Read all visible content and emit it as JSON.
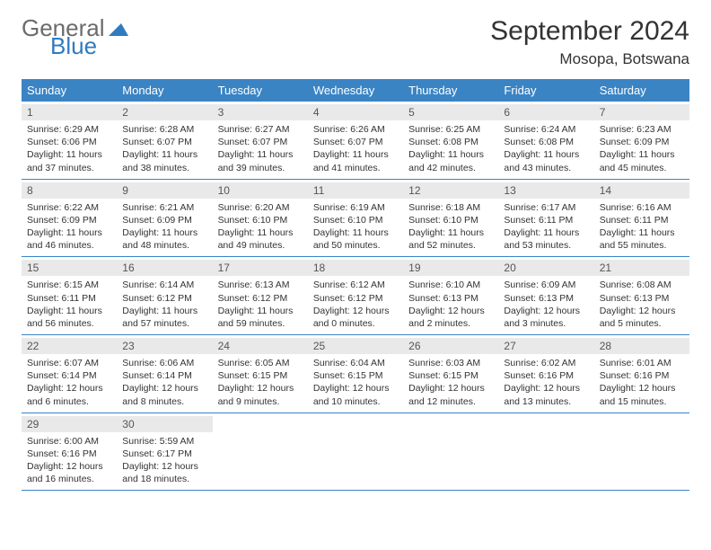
{
  "logo": {
    "word1": "General",
    "word2": "Blue",
    "word1_color": "#6b6b6b",
    "word2_color": "#2f7bbf",
    "triangle_color": "#2f7bbf"
  },
  "title": "September 2024",
  "location": "Mosopa, Botswana",
  "colors": {
    "header_bg": "#3a84c4",
    "header_text": "#ffffff",
    "daynum_bg": "#e9e9e9",
    "row_border": "#3a84c4",
    "body_text": "#333333"
  },
  "fonts": {
    "title_size": 30,
    "location_size": 17,
    "dayhead_size": 13,
    "cell_size": 10.5
  },
  "day_headers": [
    "Sunday",
    "Monday",
    "Tuesday",
    "Wednesday",
    "Thursday",
    "Friday",
    "Saturday"
  ],
  "weeks": [
    [
      {
        "num": "1",
        "sunrise": "Sunrise: 6:29 AM",
        "sunset": "Sunset: 6:06 PM",
        "daylight1": "Daylight: 11 hours",
        "daylight2": "and 37 minutes."
      },
      {
        "num": "2",
        "sunrise": "Sunrise: 6:28 AM",
        "sunset": "Sunset: 6:07 PM",
        "daylight1": "Daylight: 11 hours",
        "daylight2": "and 38 minutes."
      },
      {
        "num": "3",
        "sunrise": "Sunrise: 6:27 AM",
        "sunset": "Sunset: 6:07 PM",
        "daylight1": "Daylight: 11 hours",
        "daylight2": "and 39 minutes."
      },
      {
        "num": "4",
        "sunrise": "Sunrise: 6:26 AM",
        "sunset": "Sunset: 6:07 PM",
        "daylight1": "Daylight: 11 hours",
        "daylight2": "and 41 minutes."
      },
      {
        "num": "5",
        "sunrise": "Sunrise: 6:25 AM",
        "sunset": "Sunset: 6:08 PM",
        "daylight1": "Daylight: 11 hours",
        "daylight2": "and 42 minutes."
      },
      {
        "num": "6",
        "sunrise": "Sunrise: 6:24 AM",
        "sunset": "Sunset: 6:08 PM",
        "daylight1": "Daylight: 11 hours",
        "daylight2": "and 43 minutes."
      },
      {
        "num": "7",
        "sunrise": "Sunrise: 6:23 AM",
        "sunset": "Sunset: 6:09 PM",
        "daylight1": "Daylight: 11 hours",
        "daylight2": "and 45 minutes."
      }
    ],
    [
      {
        "num": "8",
        "sunrise": "Sunrise: 6:22 AM",
        "sunset": "Sunset: 6:09 PM",
        "daylight1": "Daylight: 11 hours",
        "daylight2": "and 46 minutes."
      },
      {
        "num": "9",
        "sunrise": "Sunrise: 6:21 AM",
        "sunset": "Sunset: 6:09 PM",
        "daylight1": "Daylight: 11 hours",
        "daylight2": "and 48 minutes."
      },
      {
        "num": "10",
        "sunrise": "Sunrise: 6:20 AM",
        "sunset": "Sunset: 6:10 PM",
        "daylight1": "Daylight: 11 hours",
        "daylight2": "and 49 minutes."
      },
      {
        "num": "11",
        "sunrise": "Sunrise: 6:19 AM",
        "sunset": "Sunset: 6:10 PM",
        "daylight1": "Daylight: 11 hours",
        "daylight2": "and 50 minutes."
      },
      {
        "num": "12",
        "sunrise": "Sunrise: 6:18 AM",
        "sunset": "Sunset: 6:10 PM",
        "daylight1": "Daylight: 11 hours",
        "daylight2": "and 52 minutes."
      },
      {
        "num": "13",
        "sunrise": "Sunrise: 6:17 AM",
        "sunset": "Sunset: 6:11 PM",
        "daylight1": "Daylight: 11 hours",
        "daylight2": "and 53 minutes."
      },
      {
        "num": "14",
        "sunrise": "Sunrise: 6:16 AM",
        "sunset": "Sunset: 6:11 PM",
        "daylight1": "Daylight: 11 hours",
        "daylight2": "and 55 minutes."
      }
    ],
    [
      {
        "num": "15",
        "sunrise": "Sunrise: 6:15 AM",
        "sunset": "Sunset: 6:11 PM",
        "daylight1": "Daylight: 11 hours",
        "daylight2": "and 56 minutes."
      },
      {
        "num": "16",
        "sunrise": "Sunrise: 6:14 AM",
        "sunset": "Sunset: 6:12 PM",
        "daylight1": "Daylight: 11 hours",
        "daylight2": "and 57 minutes."
      },
      {
        "num": "17",
        "sunrise": "Sunrise: 6:13 AM",
        "sunset": "Sunset: 6:12 PM",
        "daylight1": "Daylight: 11 hours",
        "daylight2": "and 59 minutes."
      },
      {
        "num": "18",
        "sunrise": "Sunrise: 6:12 AM",
        "sunset": "Sunset: 6:12 PM",
        "daylight1": "Daylight: 12 hours",
        "daylight2": "and 0 minutes."
      },
      {
        "num": "19",
        "sunrise": "Sunrise: 6:10 AM",
        "sunset": "Sunset: 6:13 PM",
        "daylight1": "Daylight: 12 hours",
        "daylight2": "and 2 minutes."
      },
      {
        "num": "20",
        "sunrise": "Sunrise: 6:09 AM",
        "sunset": "Sunset: 6:13 PM",
        "daylight1": "Daylight: 12 hours",
        "daylight2": "and 3 minutes."
      },
      {
        "num": "21",
        "sunrise": "Sunrise: 6:08 AM",
        "sunset": "Sunset: 6:13 PM",
        "daylight1": "Daylight: 12 hours",
        "daylight2": "and 5 minutes."
      }
    ],
    [
      {
        "num": "22",
        "sunrise": "Sunrise: 6:07 AM",
        "sunset": "Sunset: 6:14 PM",
        "daylight1": "Daylight: 12 hours",
        "daylight2": "and 6 minutes."
      },
      {
        "num": "23",
        "sunrise": "Sunrise: 6:06 AM",
        "sunset": "Sunset: 6:14 PM",
        "daylight1": "Daylight: 12 hours",
        "daylight2": "and 8 minutes."
      },
      {
        "num": "24",
        "sunrise": "Sunrise: 6:05 AM",
        "sunset": "Sunset: 6:15 PM",
        "daylight1": "Daylight: 12 hours",
        "daylight2": "and 9 minutes."
      },
      {
        "num": "25",
        "sunrise": "Sunrise: 6:04 AM",
        "sunset": "Sunset: 6:15 PM",
        "daylight1": "Daylight: 12 hours",
        "daylight2": "and 10 minutes."
      },
      {
        "num": "26",
        "sunrise": "Sunrise: 6:03 AM",
        "sunset": "Sunset: 6:15 PM",
        "daylight1": "Daylight: 12 hours",
        "daylight2": "and 12 minutes."
      },
      {
        "num": "27",
        "sunrise": "Sunrise: 6:02 AM",
        "sunset": "Sunset: 6:16 PM",
        "daylight1": "Daylight: 12 hours",
        "daylight2": "and 13 minutes."
      },
      {
        "num": "28",
        "sunrise": "Sunrise: 6:01 AM",
        "sunset": "Sunset: 6:16 PM",
        "daylight1": "Daylight: 12 hours",
        "daylight2": "and 15 minutes."
      }
    ],
    [
      {
        "num": "29",
        "sunrise": "Sunrise: 6:00 AM",
        "sunset": "Sunset: 6:16 PM",
        "daylight1": "Daylight: 12 hours",
        "daylight2": "and 16 minutes."
      },
      {
        "num": "30",
        "sunrise": "Sunrise: 5:59 AM",
        "sunset": "Sunset: 6:17 PM",
        "daylight1": "Daylight: 12 hours",
        "daylight2": "and 18 minutes."
      },
      null,
      null,
      null,
      null,
      null
    ]
  ]
}
